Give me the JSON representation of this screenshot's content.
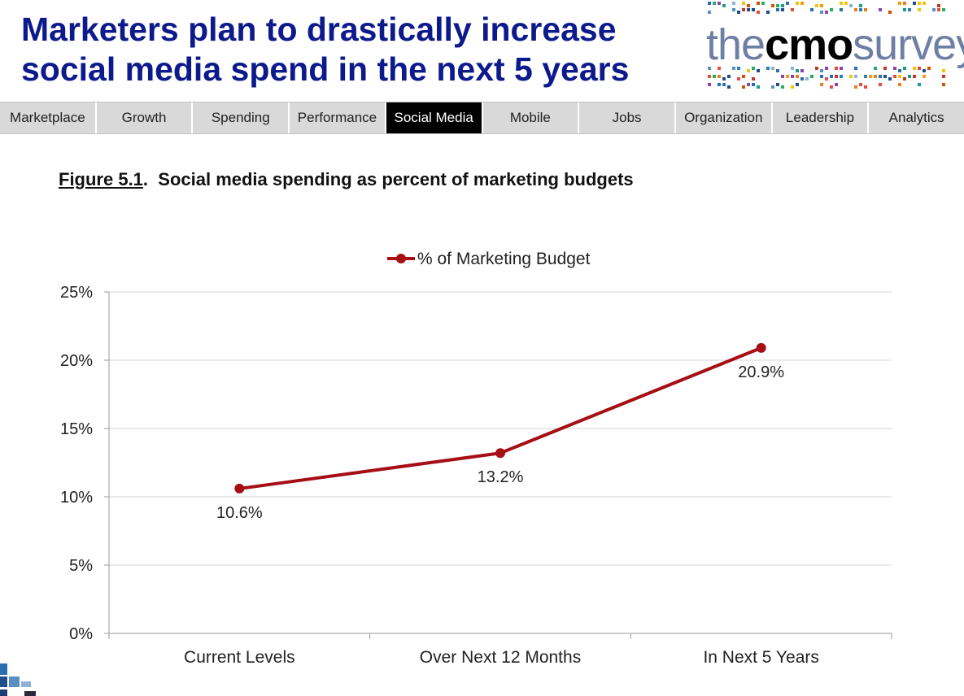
{
  "header": {
    "title_line1": "Marketers plan to drastically increase",
    "title_line2": "social media spend in the next 5 years",
    "logo": {
      "part1": "the",
      "part2": "cmo",
      "part3": "survey"
    }
  },
  "nav": {
    "items": [
      "Marketplace",
      "Growth",
      "Spending",
      "Performance",
      "Social Media",
      "Mobile",
      "Jobs",
      "Organization",
      "Leadership",
      "Analytics"
    ],
    "active": "Social Media"
  },
  "figure": {
    "number": "Figure 5.1",
    "separator": ".",
    "caption": "Social media spending as percent of marketing budgets"
  },
  "chart_data": {
    "type": "line",
    "title": "",
    "xlabel": "",
    "ylabel": "",
    "categories": [
      "Current Levels",
      "Over Next 12 Months",
      "In Next 5 Years"
    ],
    "series": [
      {
        "name": "% of Marketing Budget",
        "values": [
          10.6,
          13.2,
          20.9
        ],
        "color": "#a50f15"
      }
    ],
    "data_labels": [
      "10.6%",
      "13.2%",
      "20.9%"
    ],
    "yticks": [
      0,
      5,
      10,
      15,
      20,
      25
    ],
    "ytick_labels": [
      "0%",
      "5%",
      "10%",
      "15%",
      "20%",
      "25%"
    ],
    "ylim": [
      0,
      25
    ],
    "grid": true,
    "legend_position": "top-center",
    "gridline_color": "#d4d4d4",
    "axis_color": "#9a9a9a"
  }
}
